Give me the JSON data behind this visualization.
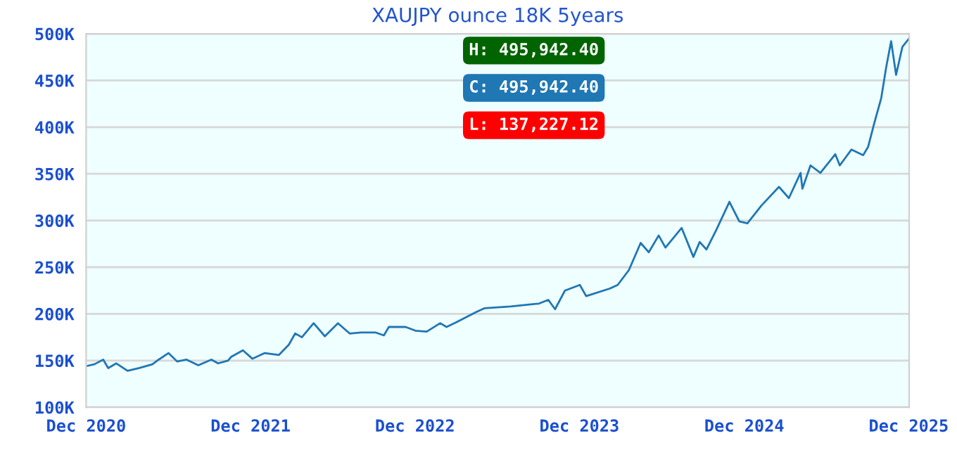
{
  "chart_data": {
    "type": "line",
    "title": "XAUJPY ounce 18K 5years",
    "x": [
      "2020-12-01",
      "2020-12-19",
      "2021-01-08",
      "2021-01-19",
      "2021-02-06",
      "2021-03-03",
      "2021-03-29",
      "2021-04-27",
      "2021-05-11",
      "2021-06-02",
      "2021-06-21",
      "2021-07-12",
      "2021-08-07",
      "2021-09-05",
      "2021-09-20",
      "2021-10-12",
      "2021-10-19",
      "2021-11-14",
      "2021-12-05",
      "2022-01-01",
      "2022-02-02",
      "2022-02-24",
      "2022-03-10",
      "2022-03-25",
      "2022-04-20",
      "2022-05-15",
      "2022-06-13",
      "2022-07-09",
      "2022-08-03",
      "2022-09-05",
      "2022-09-23",
      "2022-10-04",
      "2022-11-10",
      "2022-12-02",
      "2022-12-27",
      "2023-01-26",
      "2023-02-09",
      "2023-03-03",
      "2023-04-16",
      "2023-05-04",
      "2023-07-01",
      "2023-09-02",
      "2023-09-23",
      "2023-10-08",
      "2023-10-30",
      "2023-12-02",
      "2023-12-16",
      "2024-02-06",
      "2024-02-24",
      "2024-03-20",
      "2024-04-15",
      "2024-05-03",
      "2024-05-25",
      "2024-06-09",
      "2024-07-15",
      "2024-08-10",
      "2024-08-24",
      "2024-09-08",
      "2024-09-30",
      "2024-10-29",
      "2024-11-20",
      "2024-12-08",
      "2025-01-08",
      "2025-02-16",
      "2025-03-10",
      "2025-04-05",
      "2025-04-09",
      "2025-04-27",
      "2025-05-19",
      "2025-06-21",
      "2025-07-01",
      "2025-07-27",
      "2025-08-22",
      "2025-09-02",
      "2025-09-16",
      "2025-10-01",
      "2025-10-12",
      "2025-10-23",
      "2025-11-03",
      "2025-11-17",
      "2025-12-02"
    ],
    "series": [
      {
        "color": "#1f77b4",
        "values": [
          144000,
          146000,
          151000,
          142000,
          147000,
          139000,
          142000,
          146000,
          151000,
          158000,
          149000,
          151000,
          145000,
          151000,
          147000,
          150000,
          154000,
          161000,
          152000,
          158000,
          156000,
          167000,
          179000,
          175000,
          190000,
          176000,
          190000,
          179000,
          180000,
          180000,
          177000,
          186000,
          186000,
          182000,
          181000,
          190000,
          186000,
          191000,
          202000,
          206000,
          208000,
          211000,
          215000,
          205000,
          225000,
          231000,
          219000,
          227000,
          231000,
          247000,
          276000,
          266000,
          284000,
          271000,
          292000,
          261000,
          277000,
          269000,
          290000,
          320000,
          299000,
          297000,
          316000,
          336000,
          324000,
          351000,
          334000,
          359000,
          351000,
          371000,
          359000,
          376000,
          370000,
          379000,
          405000,
          431000,
          464000,
          492000,
          456000,
          486000,
          495000
        ]
      }
    ],
    "xlim": [
      "2020-12-01",
      "2025-12-02"
    ],
    "xticks": [
      {
        "value": "2020-12-01",
        "label": "Dec 2020"
      },
      {
        "value": "2021-12-01",
        "label": "Dec 2021"
      },
      {
        "value": "2022-12-01",
        "label": "Dec 2022"
      },
      {
        "value": "2023-12-01",
        "label": "Dec 2023"
      },
      {
        "value": "2024-12-01",
        "label": "Dec 2024"
      },
      {
        "value": "2025-12-01",
        "label": "Dec 2025"
      }
    ],
    "ylim": [
      100000,
      500000
    ],
    "yticks": [
      {
        "value": 100000,
        "label": "100K"
      },
      {
        "value": 150000,
        "label": "150K"
      },
      {
        "value": 200000,
        "label": "200K"
      },
      {
        "value": 250000,
        "label": "250K"
      },
      {
        "value": 300000,
        "label": "300K"
      },
      {
        "value": 350000,
        "label": "350K"
      },
      {
        "value": 400000,
        "label": "400K"
      },
      {
        "value": 450000,
        "label": "450K"
      },
      {
        "value": 500000,
        "label": "500K"
      }
    ],
    "grid": "y",
    "annotations": [
      "H: 495,942.40",
      "C: 495,942.40",
      "L: 137,227.12"
    ]
  }
}
